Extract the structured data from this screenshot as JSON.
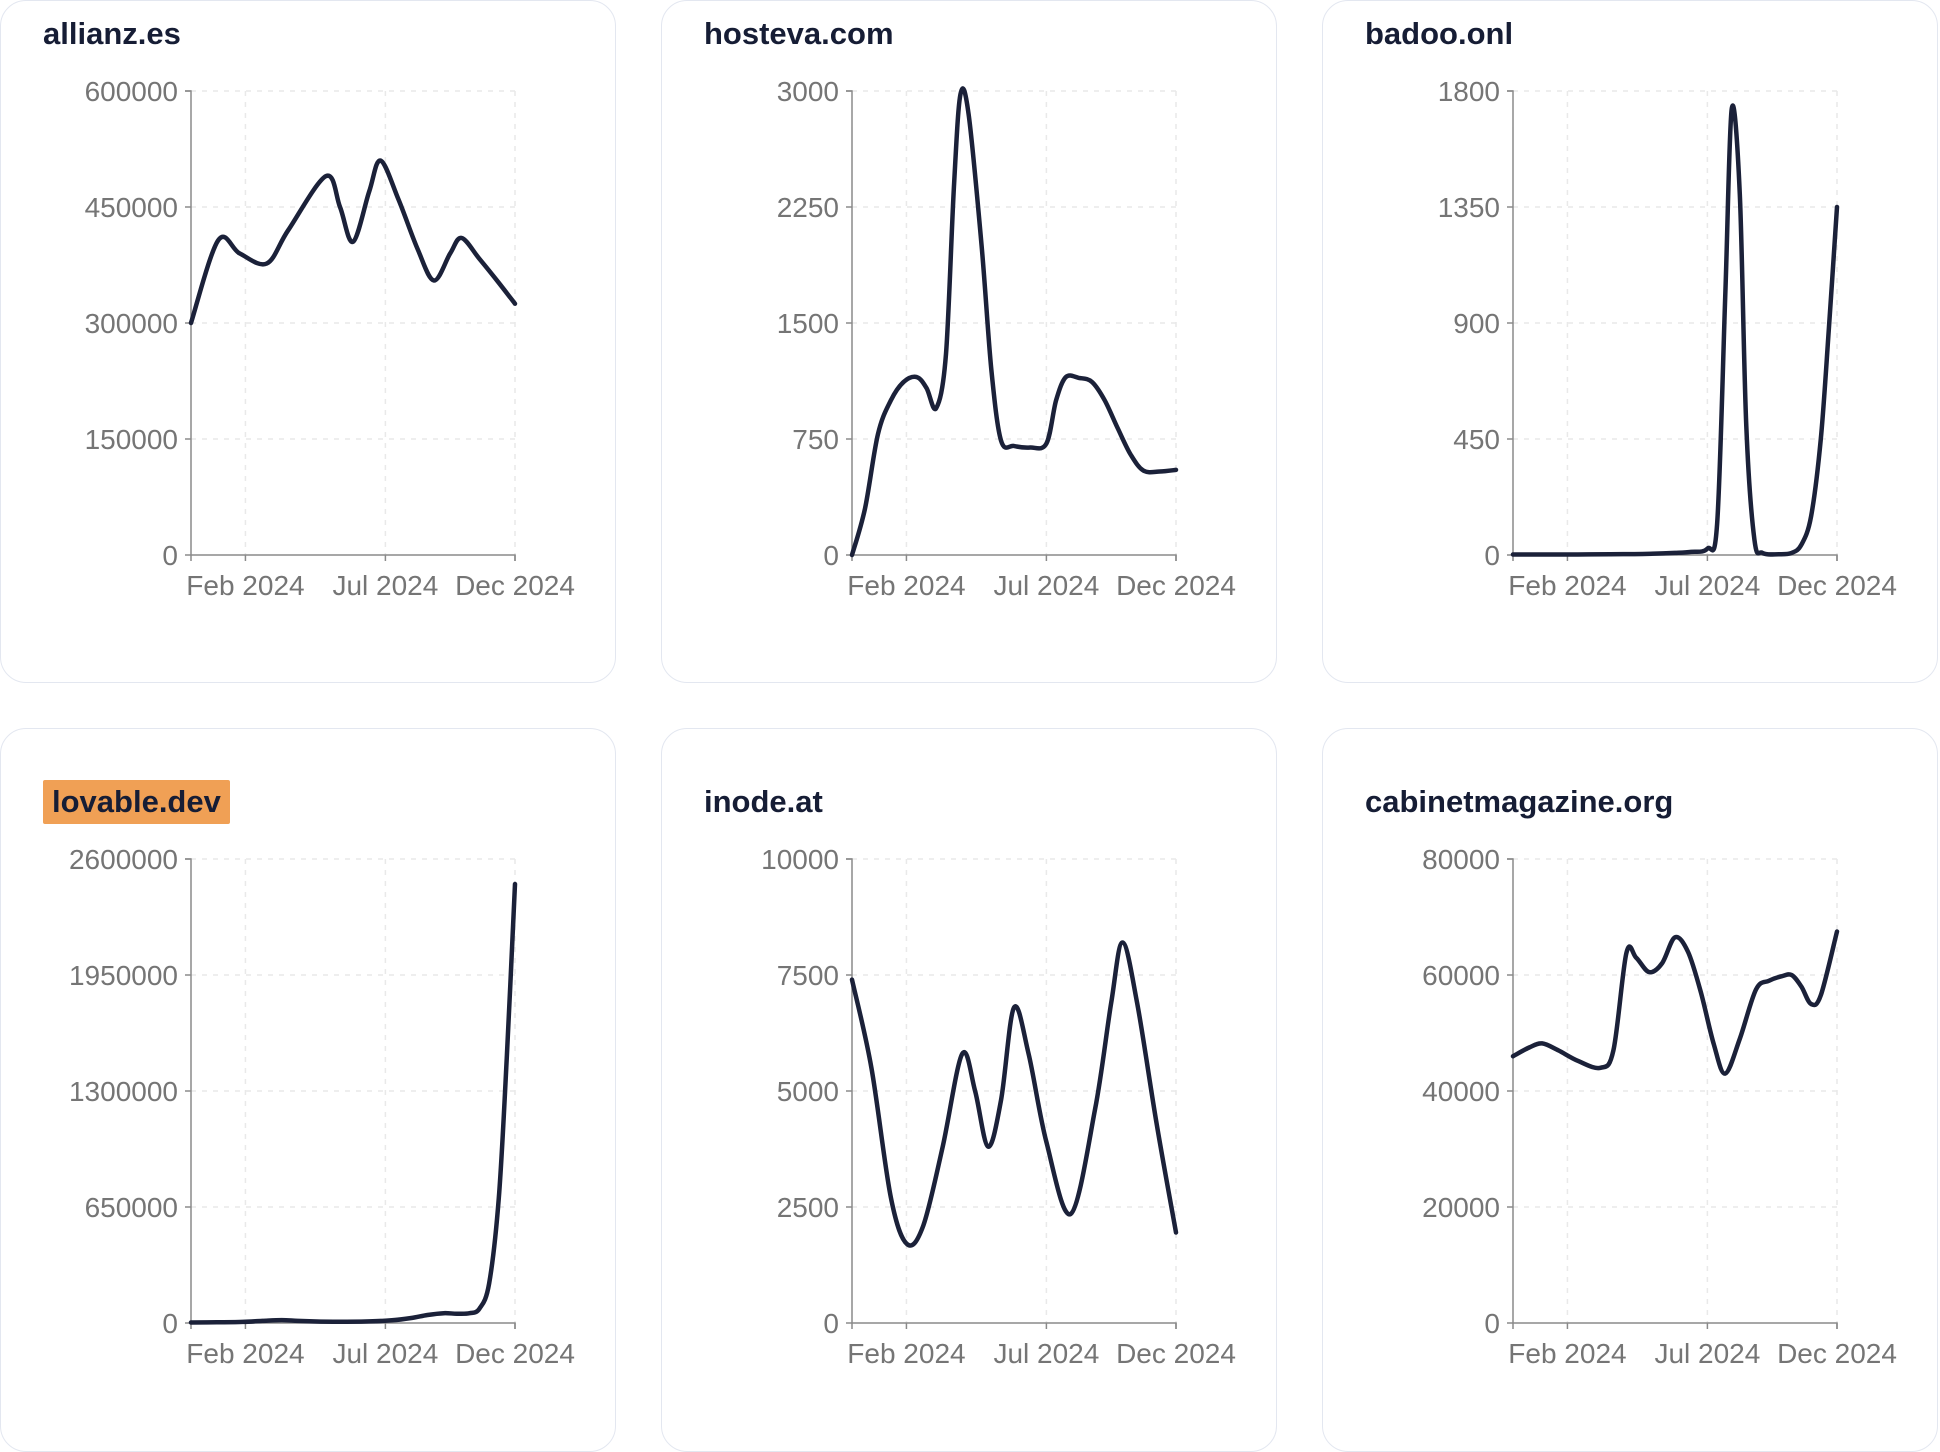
{
  "style": {
    "series_color": "#1B2139",
    "grid_color": "#e9e9e9",
    "axis_color": "#8a8a8a",
    "tick_label_color": "#757575",
    "title_color": "#161d35",
    "card_border_color": "#e3e7f0",
    "highlight_color": "#F0A055",
    "background": "#ffffff"
  },
  "chart_data": [
    {
      "type": "line",
      "title": "allianz.es",
      "highlighted": false,
      "xlabel": "",
      "ylabel": "",
      "grid": true,
      "legend": "none",
      "ylim": [
        0,
        600000
      ],
      "y_ticks": [
        0,
        150000,
        300000,
        450000,
        600000
      ],
      "x_tick_labels": [
        "Feb 2024",
        "Jul 2024",
        "Dec 2024"
      ],
      "x_tick_positions": [
        0.168,
        0.6,
        1.0
      ],
      "points": [
        [
          0.0,
          300000
        ],
        [
          0.084,
          407000
        ],
        [
          0.15,
          390000
        ],
        [
          0.234,
          377000
        ],
        [
          0.3,
          420000
        ],
        [
          0.417,
          490000
        ],
        [
          0.46,
          450000
        ],
        [
          0.5,
          405000
        ],
        [
          0.55,
          470000
        ],
        [
          0.585,
          510000
        ],
        [
          0.64,
          460000
        ],
        [
          0.7,
          395000
        ],
        [
          0.75,
          355000
        ],
        [
          0.8,
          390000
        ],
        [
          0.835,
          410000
        ],
        [
          0.89,
          383000
        ],
        [
          0.95,
          352000
        ],
        [
          1.0,
          325000
        ]
      ]
    },
    {
      "type": "line",
      "title": "hosteva.com",
      "highlighted": false,
      "xlabel": "",
      "ylabel": "",
      "grid": true,
      "legend": "none",
      "ylim": [
        0,
        3000
      ],
      "y_ticks": [
        0,
        750,
        1500,
        2250,
        3000
      ],
      "x_tick_labels": [
        "Feb 2024",
        "Jul 2024",
        "Dec 2024"
      ],
      "x_tick_positions": [
        0.168,
        0.6,
        1.0
      ],
      "points": [
        [
          0.0,
          0
        ],
        [
          0.04,
          300
        ],
        [
          0.08,
          780
        ],
        [
          0.12,
          1000
        ],
        [
          0.16,
          1120
        ],
        [
          0.2,
          1150
        ],
        [
          0.23,
          1080
        ],
        [
          0.26,
          950
        ],
        [
          0.29,
          1300
        ],
        [
          0.315,
          2400
        ],
        [
          0.335,
          2980
        ],
        [
          0.36,
          2850
        ],
        [
          0.4,
          2000
        ],
        [
          0.43,
          1200
        ],
        [
          0.46,
          740
        ],
        [
          0.5,
          705
        ],
        [
          0.55,
          695
        ],
        [
          0.6,
          720
        ],
        [
          0.63,
          1000
        ],
        [
          0.66,
          1150
        ],
        [
          0.7,
          1145
        ],
        [
          0.74,
          1120
        ],
        [
          0.78,
          1000
        ],
        [
          0.82,
          820
        ],
        [
          0.86,
          650
        ],
        [
          0.9,
          545
        ],
        [
          0.95,
          540
        ],
        [
          1.0,
          550
        ]
      ]
    },
    {
      "type": "line",
      "title": "badoo.onl",
      "highlighted": false,
      "xlabel": "",
      "ylabel": "",
      "grid": true,
      "legend": "none",
      "ylim": [
        0,
        1800
      ],
      "y_ticks": [
        0,
        450,
        900,
        1350,
        1800
      ],
      "x_tick_labels": [
        "Feb 2024",
        "Jul 2024",
        "Dec 2024"
      ],
      "x_tick_positions": [
        0.168,
        0.6,
        1.0
      ],
      "points": [
        [
          0.0,
          2
        ],
        [
          0.1,
          2
        ],
        [
          0.2,
          2
        ],
        [
          0.3,
          3
        ],
        [
          0.4,
          4
        ],
        [
          0.5,
          8
        ],
        [
          0.55,
          12
        ],
        [
          0.6,
          25
        ],
        [
          0.63,
          120
        ],
        [
          0.655,
          1000
        ],
        [
          0.675,
          1730
        ],
        [
          0.7,
          1400
        ],
        [
          0.72,
          500
        ],
        [
          0.745,
          60
        ],
        [
          0.77,
          8
        ],
        [
          0.82,
          3
        ],
        [
          0.86,
          8
        ],
        [
          0.89,
          40
        ],
        [
          0.92,
          150
        ],
        [
          0.95,
          450
        ],
        [
          0.975,
          880
        ],
        [
          1.0,
          1350
        ]
      ]
    },
    {
      "type": "line",
      "title": "lovable.dev",
      "highlighted": true,
      "xlabel": "",
      "ylabel": "",
      "grid": true,
      "legend": "none",
      "ylim": [
        0,
        2600000
      ],
      "y_ticks": [
        0,
        650000,
        1300000,
        1950000,
        2600000
      ],
      "x_tick_labels": [
        "Feb 2024",
        "Jul 2024",
        "Dec 2024"
      ],
      "x_tick_positions": [
        0.168,
        0.6,
        1.0
      ],
      "points": [
        [
          0.0,
          3000
        ],
        [
          0.08,
          4000
        ],
        [
          0.16,
          6000
        ],
        [
          0.22,
          12000
        ],
        [
          0.28,
          16000
        ],
        [
          0.33,
          12000
        ],
        [
          0.4,
          8000
        ],
        [
          0.48,
          7000
        ],
        [
          0.55,
          9000
        ],
        [
          0.62,
          15000
        ],
        [
          0.68,
          28000
        ],
        [
          0.73,
          45000
        ],
        [
          0.78,
          55000
        ],
        [
          0.82,
          52000
        ],
        [
          0.86,
          55000
        ],
        [
          0.89,
          80000
        ],
        [
          0.92,
          220000
        ],
        [
          0.95,
          700000
        ],
        [
          0.975,
          1500000
        ],
        [
          1.0,
          2460000
        ]
      ]
    },
    {
      "type": "line",
      "title": "inode.at",
      "highlighted": false,
      "xlabel": "",
      "ylabel": "",
      "grid": true,
      "legend": "none",
      "ylim": [
        0,
        10000
      ],
      "y_ticks": [
        0,
        2500,
        5000,
        7500,
        10000
      ],
      "x_tick_labels": [
        "Feb 2024",
        "Jul 2024",
        "Dec 2024"
      ],
      "x_tick_positions": [
        0.168,
        0.6,
        1.0
      ],
      "points": [
        [
          0.0,
          7400
        ],
        [
          0.06,
          5500
        ],
        [
          0.12,
          2700
        ],
        [
          0.17,
          1700
        ],
        [
          0.22,
          2100
        ],
        [
          0.28,
          3800
        ],
        [
          0.34,
          5800
        ],
        [
          0.38,
          5000
        ],
        [
          0.42,
          3800
        ],
        [
          0.46,
          4800
        ],
        [
          0.5,
          6800
        ],
        [
          0.545,
          5800
        ],
        [
          0.6,
          3900
        ],
        [
          0.675,
          2350
        ],
        [
          0.75,
          4600
        ],
        [
          0.8,
          6900
        ],
        [
          0.835,
          8200
        ],
        [
          0.88,
          6900
        ],
        [
          0.94,
          4300
        ],
        [
          1.0,
          1950
        ]
      ]
    },
    {
      "type": "line",
      "title": "cabinetmagazine.org",
      "highlighted": false,
      "xlabel": "",
      "ylabel": "",
      "grid": true,
      "legend": "none",
      "ylim": [
        0,
        80000
      ],
      "y_ticks": [
        0,
        20000,
        40000,
        60000,
        80000
      ],
      "x_tick_labels": [
        "Feb 2024",
        "Jul 2024",
        "Dec 2024"
      ],
      "x_tick_positions": [
        0.168,
        0.6,
        1.0
      ],
      "points": [
        [
          0.0,
          46000
        ],
        [
          0.05,
          47500
        ],
        [
          0.09,
          48200
        ],
        [
          0.14,
          47000
        ],
        [
          0.2,
          45200
        ],
        [
          0.27,
          44000
        ],
        [
          0.31,
          47000
        ],
        [
          0.35,
          63800
        ],
        [
          0.38,
          63000
        ],
        [
          0.42,
          60500
        ],
        [
          0.46,
          62000
        ],
        [
          0.5,
          66500
        ],
        [
          0.54,
          64000
        ],
        [
          0.58,
          57000
        ],
        [
          0.62,
          48000
        ],
        [
          0.655,
          43000
        ],
        [
          0.7,
          49000
        ],
        [
          0.75,
          57500
        ],
        [
          0.79,
          59000
        ],
        [
          0.83,
          59800
        ],
        [
          0.86,
          60000
        ],
        [
          0.89,
          58000
        ],
        [
          0.92,
          55000
        ],
        [
          0.95,
          56500
        ],
        [
          1.0,
          67500
        ]
      ]
    }
  ]
}
